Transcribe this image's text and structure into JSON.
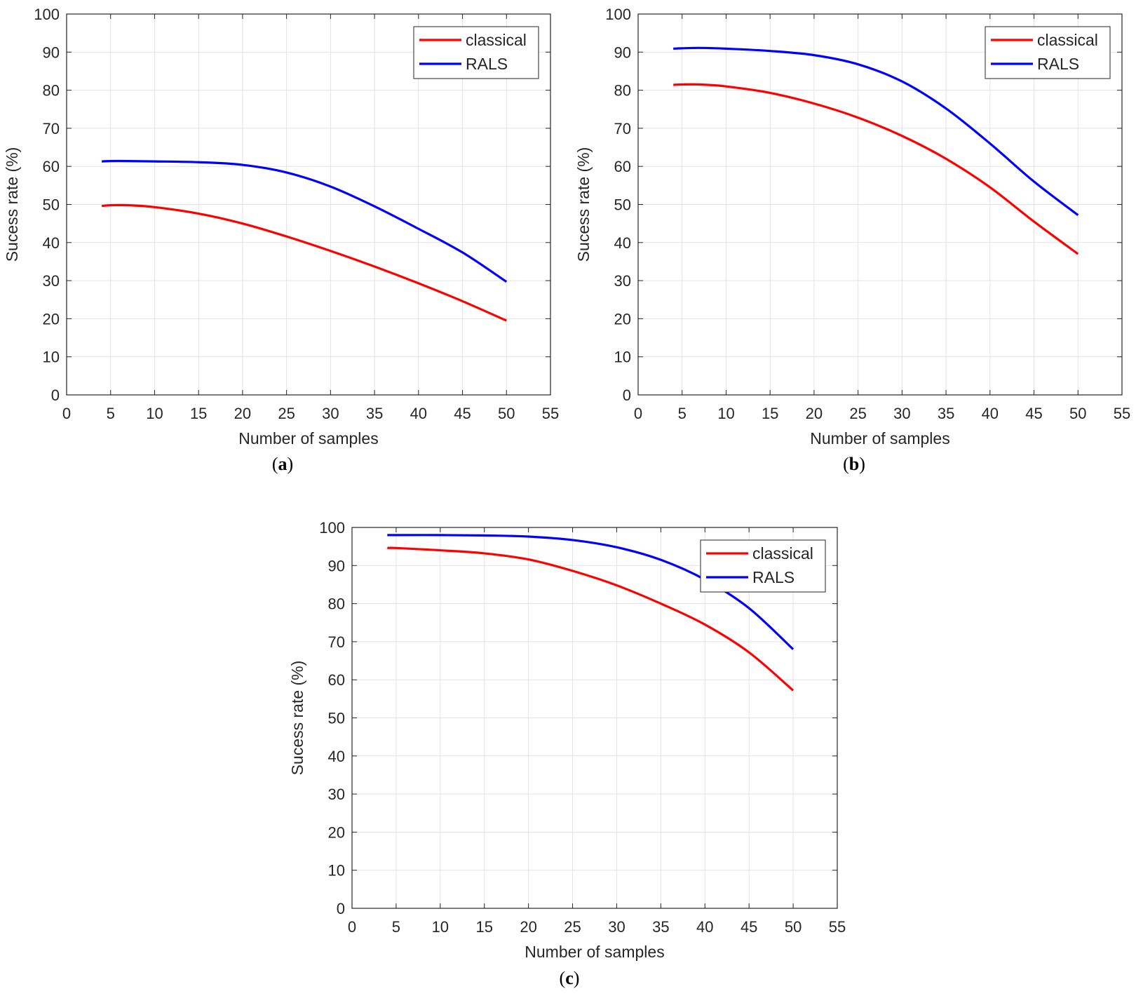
{
  "chart_data": [
    {
      "id": "a",
      "type": "line",
      "caption_letter": "a",
      "xlabel": "Number of samples",
      "ylabel": "Sucess rate (%)",
      "xlim": [
        0,
        55
      ],
      "ylim": [
        0,
        100
      ],
      "xticks": [
        0,
        5,
        10,
        15,
        20,
        25,
        30,
        35,
        40,
        45,
        50,
        55
      ],
      "yticks": [
        0,
        10,
        20,
        30,
        40,
        50,
        60,
        70,
        80,
        90,
        100
      ],
      "grid": true,
      "legend_position": "top-right",
      "x": [
        4,
        5,
        7,
        10,
        15,
        20,
        25,
        30,
        35,
        40,
        45,
        50
      ],
      "series": [
        {
          "name": "classical",
          "color": "#ff0000",
          "values": [
            49.6,
            49.8,
            49.8,
            49.3,
            47.6,
            45.0,
            41.6,
            37.8,
            33.7,
            29.3,
            24.6,
            19.5
          ]
        },
        {
          "name": "RALS",
          "color": "#0000ff",
          "values": [
            61.3,
            61.4,
            61.4,
            61.3,
            61.1,
            60.4,
            58.4,
            54.7,
            49.5,
            43.6,
            37.4,
            29.7
          ]
        }
      ]
    },
    {
      "id": "b",
      "type": "line",
      "caption_letter": "b",
      "xlabel": "Number of samples",
      "ylabel": "Sucess rate (%)",
      "xlim": [
        0,
        55
      ],
      "ylim": [
        0,
        100
      ],
      "xticks": [
        0,
        5,
        10,
        15,
        20,
        25,
        30,
        35,
        40,
        45,
        50,
        55
      ],
      "yticks": [
        0,
        10,
        20,
        30,
        40,
        50,
        60,
        70,
        80,
        90,
        100
      ],
      "grid": true,
      "legend_position": "top-right",
      "x": [
        4,
        5,
        7,
        10,
        15,
        20,
        25,
        30,
        35,
        40,
        45,
        50
      ],
      "series": [
        {
          "name": "classical",
          "color": "#ff0000",
          "values": [
            81.4,
            81.5,
            81.5,
            81.0,
            79.3,
            76.5,
            72.8,
            68.0,
            62.0,
            54.5,
            45.5,
            37.0
          ]
        },
        {
          "name": "RALS",
          "color": "#0000ff",
          "values": [
            90.9,
            91.0,
            91.1,
            90.9,
            90.3,
            89.2,
            86.8,
            82.3,
            75.2,
            66.0,
            56.0,
            47.2
          ]
        }
      ]
    },
    {
      "id": "c",
      "type": "line",
      "caption_letter": "c",
      "xlabel": "Number of samples",
      "ylabel": "Sucess rate (%)",
      "xlim": [
        0,
        55
      ],
      "ylim": [
        0,
        100
      ],
      "xticks": [
        0,
        5,
        10,
        15,
        20,
        25,
        30,
        35,
        40,
        45,
        50,
        55
      ],
      "yticks": [
        0,
        10,
        20,
        30,
        40,
        50,
        60,
        70,
        80,
        90,
        100
      ],
      "grid": true,
      "legend_position": "top-right",
      "x": [
        4,
        5,
        10,
        15,
        20,
        25,
        30,
        35,
        40,
        45,
        50
      ],
      "series": [
        {
          "name": "classical",
          "color": "#ff0000",
          "values": [
            94.6,
            94.6,
            94.0,
            93.2,
            91.6,
            88.6,
            84.8,
            80.0,
            74.5,
            67.2,
            57.2
          ]
        },
        {
          "name": "RALS",
          "color": "#0000ff",
          "values": [
            98.0,
            98.0,
            98.0,
            97.9,
            97.6,
            96.7,
            94.8,
            91.5,
            86.3,
            78.8,
            68.0
          ]
        }
      ]
    }
  ]
}
